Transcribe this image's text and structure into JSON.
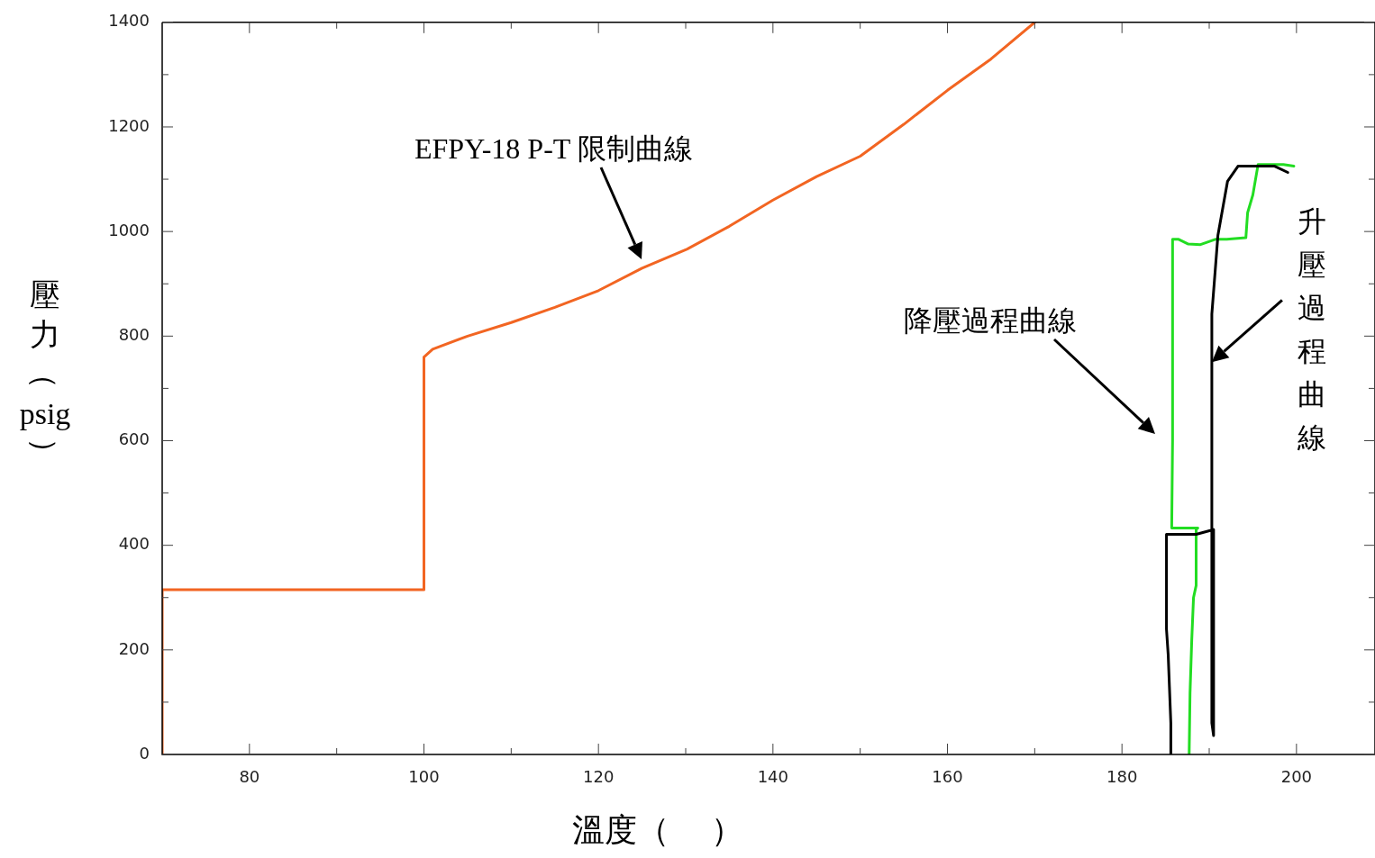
{
  "chart_data": {
    "type": "line",
    "xlabel": "溫度（    ）",
    "ylabel": "壓力（psig）",
    "xlim": [
      70,
      209
    ],
    "xticks": [
      80,
      {
        "value": 90,
        "label": null
      },
      100,
      {
        "value": 110,
        "label": null
      },
      120,
      {
        "value": 130,
        "label": null
      },
      140,
      {
        "value": 150,
        "label": null
      },
      160,
      {
        "value": 170,
        "label": null
      },
      180,
      {
        "value": 190,
        "label": null
      },
      200
    ],
    "ylim": [
      0,
      1400
    ],
    "yticks": [
      0,
      {
        "value": 100,
        "label": null
      },
      200,
      {
        "value": 300,
        "label": null
      },
      400,
      {
        "value": 500,
        "label": null
      },
      600,
      {
        "value": 700,
        "label": null
      },
      800,
      {
        "value": 900,
        "label": null
      },
      1000,
      {
        "value": 1100,
        "label": null
      },
      1200,
      {
        "value": 1300,
        "label": null
      },
      1400
    ],
    "grid": false,
    "legend": false,
    "marker": "none",
    "line_style": "solid",
    "series": [
      {
        "color": "#f26522",
        "x": [
          70,
          70,
          100,
          100,
          101,
          105,
          110,
          115,
          120,
          125,
          130,
          135,
          140,
          145,
          150,
          155,
          160,
          165,
          170
        ],
        "values": [
          0,
          315,
          315,
          760,
          775,
          800,
          826,
          855,
          887,
          930,
          965,
          1010,
          1060,
          1105,
          1144,
          1205,
          1270,
          1330,
          1400
        ]
      },
      {
        "color": "#000000",
        "x": [
          185.6,
          185.6,
          185.3,
          185.1,
          185.1,
          188.5,
          190.5,
          190.5,
          190.3,
          190.3,
          191,
          192.1,
          193.3,
          197.5,
          199
        ],
        "values": [
          0,
          60,
          190,
          240,
          421,
          421,
          430,
          36,
          60,
          842,
          993,
          1096,
          1125,
          1125,
          1113
        ]
      },
      {
        "color": "#22dd22",
        "x": [
          199.7,
          198.5,
          195.6,
          195,
          194.4,
          194.2,
          192,
          190.7,
          189,
          187.6,
          186.5,
          185.8,
          185.8,
          185.7,
          188.7,
          188.5,
          188.5,
          188.2,
          188,
          187.8,
          187.7
        ],
        "values": [
          1125,
          1128,
          1128,
          1070,
          1036,
          988,
          985,
          985,
          975,
          976,
          985,
          985,
          600,
          433,
          433,
          430,
          323,
          300,
          220,
          117,
          0
        ]
      }
    ],
    "annotations": [
      "EFPY-18 P-T 限制曲線",
      "降壓過程曲線",
      {
        "text": "升壓過程曲線",
        "x": 190.3,
        "y": 750
      }
    ]
  }
}
